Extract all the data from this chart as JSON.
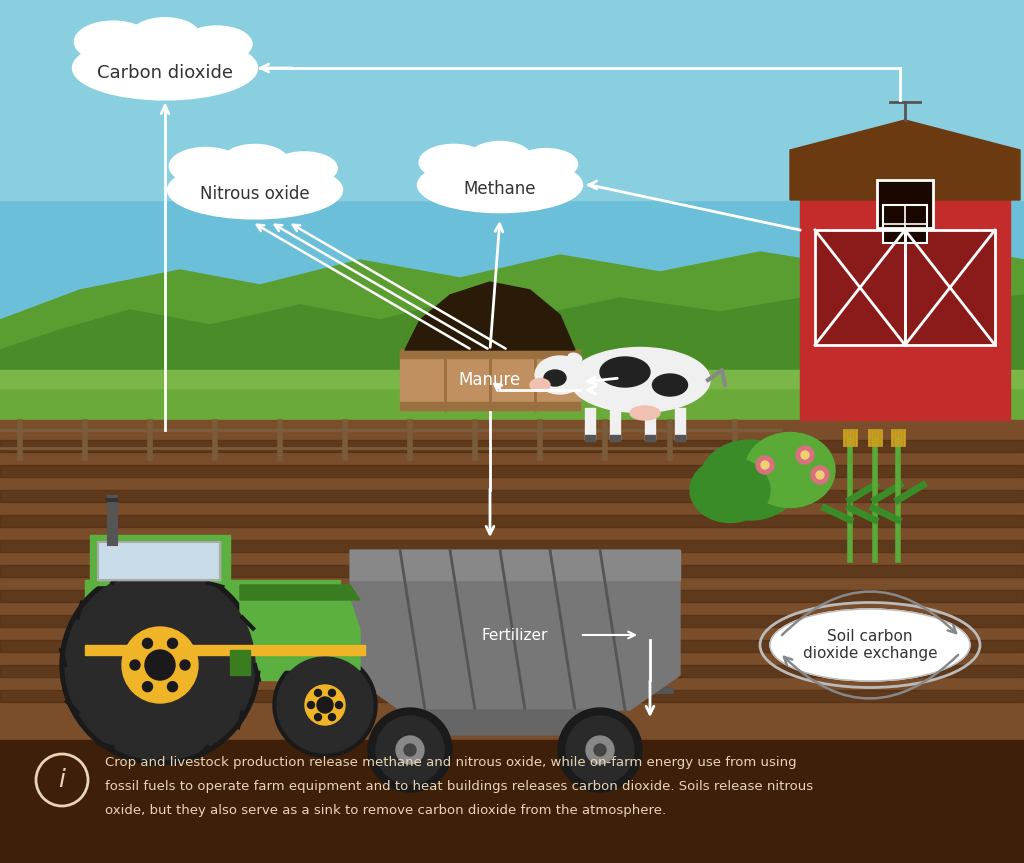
{
  "sky_color": "#6bbfd8",
  "sky_color2": "#89cfe0",
  "hill_far_color": "#5a9e32",
  "hill_mid_color": "#4a8c28",
  "hill_near_color": "#7ab648",
  "grass_strip_color": "#6aaa38",
  "dirt_color": "#7a4e2a",
  "dirt_dark_color": "#5c3318",
  "furrow_color": "#4a2810",
  "info_bar_color": "#3d1f0a",
  "fence_color": "#7a5c3a",
  "fence_post_color": "#6a4c2a",
  "barn_red": "#c42b2b",
  "barn_roof": "#6b3a10",
  "barn_dark": "#1a0800",
  "barn_door_red": "#8b1a1a",
  "tractor_green": "#5cb040",
  "tractor_dark_green": "#3a7c20",
  "tractor_yellow": "#f0b429",
  "tractor_gray": "#888888",
  "tractor_window": "#c8dce8",
  "trailer_gray": "#777777",
  "trailer_dark": "#555555",
  "manure_box": "#c09060",
  "manure_box_dark": "#9a7040",
  "manure_dark": "#2a1a08",
  "cow_white": "#f0f0f0",
  "cow_black": "#222222",
  "cow_pink": "#f0c0b0",
  "cloud_white": "#f5f5f5",
  "cloud_shadow": "#e0e0e0",
  "cloud_text": "#333333",
  "soil_ellipse_bg": "#f5f5f5",
  "soil_ellipse_border": "#bbbbbb",
  "arrow_color": "#ffffff",
  "info_text_color": "#e8d5b5",
  "plant_green1": "#3a8c28",
  "plant_green2": "#5aaa38",
  "plant_corn": "#c8a020",
  "plant_flower": "#d87080",
  "label_co2": "Carbon dioxide",
  "label_n2o": "Nitrous oxide",
  "label_ch4": "Methane",
  "label_manure": "Manure",
  "label_fertilizer": "Fertilizer",
  "label_soil": "Soil carbon\ndioxide exchange",
  "caption_line1": "Crop and livestock production release methane and nitrous oxide, while on-farm energy use from using",
  "caption_line2": "fossil fuels to operate farm equipment and to heat buildings releases carbon dioxide. Soils release nitrous",
  "caption_line3": "oxide, but they also serve as a sink to remove carbon dioxide from the atmosphere."
}
